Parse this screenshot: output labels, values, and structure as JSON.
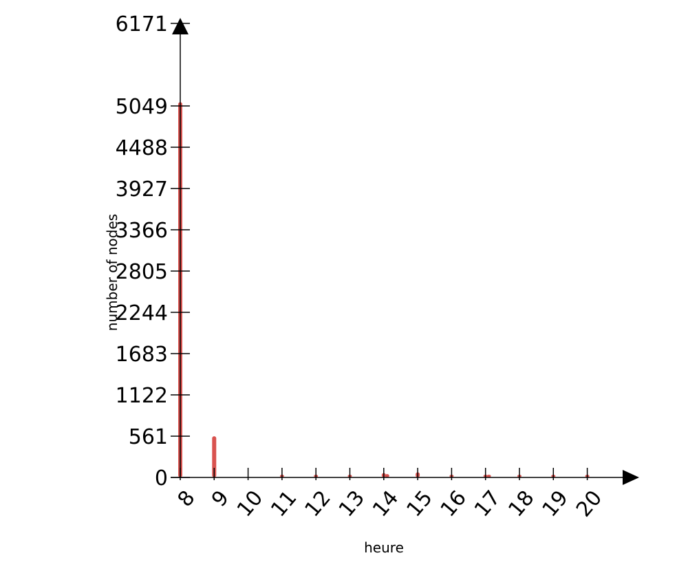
{
  "chart_data": {
    "type": "bar",
    "xlabel": "heure",
    "ylabel": "number of nodes",
    "x_ticks": [
      8,
      9,
      10,
      11,
      12,
      13,
      14,
      15,
      16,
      17,
      18,
      19,
      20
    ],
    "y_ticks": [
      0,
      561,
      1122,
      1683,
      2244,
      2805,
      3366,
      3927,
      4488,
      5049,
      6171
    ],
    "xlim": [
      8,
      21
    ],
    "ylim": [
      0,
      6171
    ],
    "bars": [
      {
        "x": 8.0,
        "y": 5100
      },
      {
        "x": 9.0,
        "y": 560
      },
      {
        "x": 11.0,
        "y": 15
      },
      {
        "x": 12.0,
        "y": 20
      },
      {
        "x": 13.0,
        "y": 20
      },
      {
        "x": 14.0,
        "y": 60
      },
      {
        "x": 14.1,
        "y": 45
      },
      {
        "x": 15.0,
        "y": 70
      },
      {
        "x": 16.0,
        "y": 25
      },
      {
        "x": 17.0,
        "y": 25
      },
      {
        "x": 17.1,
        "y": 15
      },
      {
        "x": 18.0,
        "y": 20
      },
      {
        "x": 19.0,
        "y": 10
      },
      {
        "x": 20.0,
        "y": 10
      }
    ],
    "bar_color": "#d9534f",
    "grid": false,
    "legend": "none"
  }
}
